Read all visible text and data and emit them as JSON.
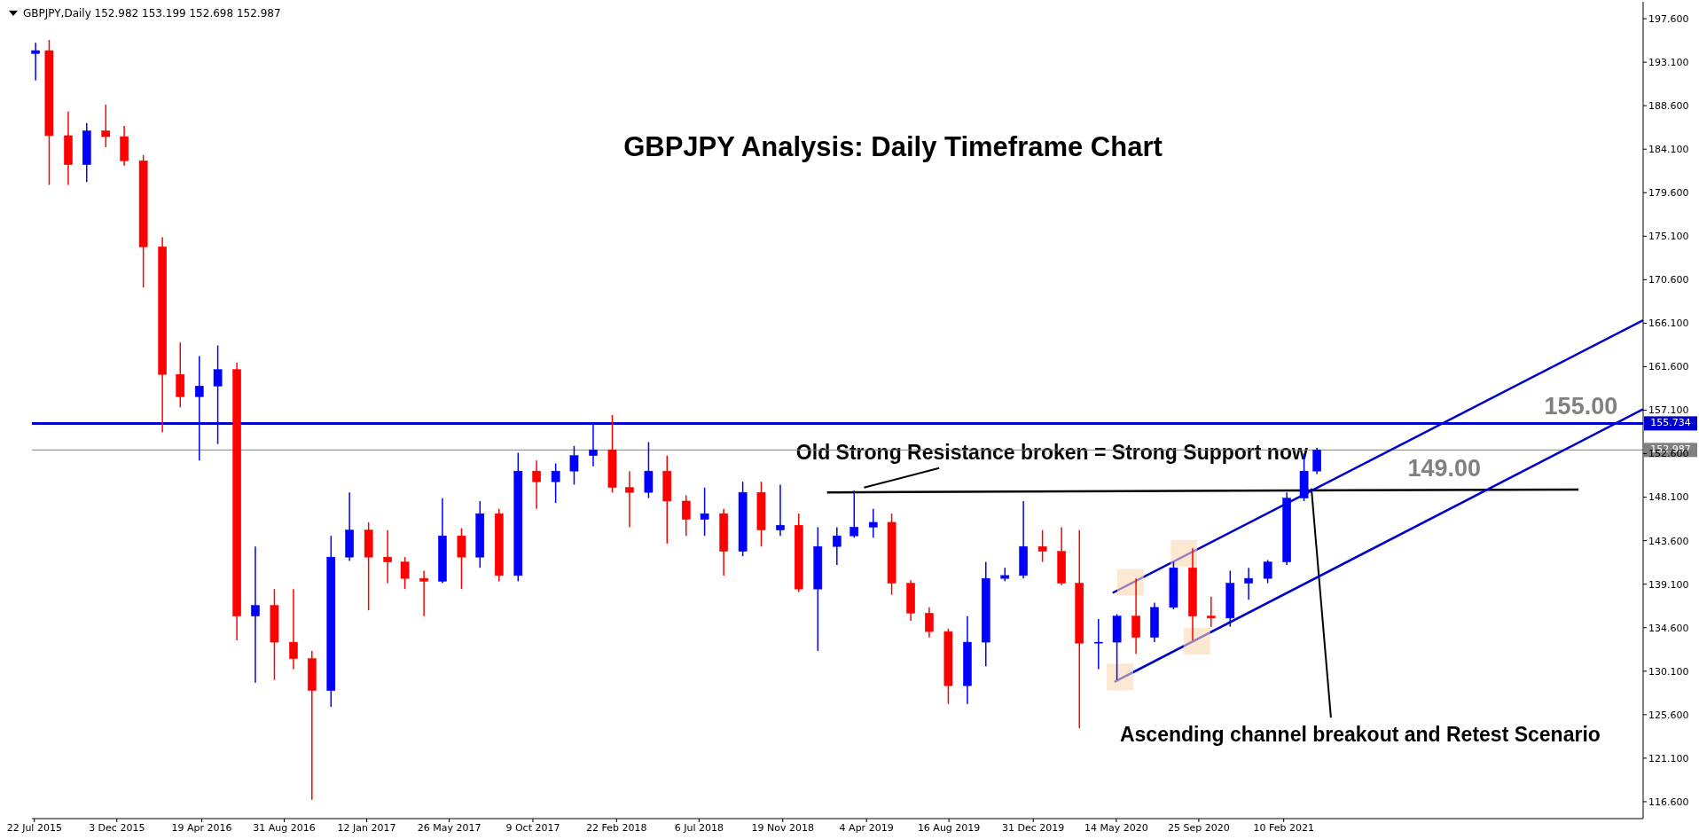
{
  "chart_data": {
    "type": "candlestick",
    "title": "GBPJPY Analysis: Daily Timeframe Chart",
    "x": [
      "2015-07-24",
      "2015-08-15",
      "2015-09-15",
      "2015-10-15",
      "2015-11-15",
      "2015-12-15",
      "2016-01-15",
      "2016-02-15",
      "2016-03-15",
      "2016-04-15",
      "2016-05-15",
      "2016-06-15",
      "2016-07-15",
      "2016-08-15",
      "2016-09-15",
      "2016-10-15",
      "2016-11-15",
      "2016-12-15",
      "2017-01-15",
      "2017-02-15",
      "2017-03-15",
      "2017-04-15",
      "2017-05-15",
      "2017-06-15",
      "2017-07-15",
      "2017-08-15",
      "2017-09-15",
      "2017-10-15",
      "2017-11-15",
      "2017-12-15",
      "2018-01-15",
      "2018-02-15",
      "2018-03-15",
      "2018-04-15",
      "2018-05-15",
      "2018-06-15",
      "2018-07-15",
      "2018-08-15",
      "2018-09-15",
      "2018-10-15",
      "2018-11-15",
      "2018-12-15",
      "2019-01-15",
      "2019-02-15",
      "2019-03-15",
      "2019-04-15",
      "2019-05-15",
      "2019-06-15",
      "2019-07-15",
      "2019-08-15",
      "2019-09-15",
      "2019-10-15",
      "2019-11-15",
      "2019-12-15",
      "2020-01-15",
      "2020-02-15",
      "2020-03-15",
      "2020-04-15",
      "2020-05-15",
      "2020-06-15",
      "2020-07-15",
      "2020-08-15",
      "2020-09-15",
      "2020-10-15",
      "2020-11-15",
      "2020-12-15",
      "2021-01-15",
      "2021-02-15",
      "2021-03-15",
      "2021-04-05"
    ],
    "ohlc": [
      [
        194.0,
        195.1,
        191.2,
        194.3
      ],
      [
        194.3,
        195.4,
        180.4,
        185.5
      ],
      [
        185.5,
        188.0,
        180.4,
        182.5
      ],
      [
        182.5,
        186.8,
        180.7,
        186.0
      ],
      [
        186.0,
        188.7,
        184.3,
        185.4
      ],
      [
        185.4,
        186.5,
        182.4,
        182.9
      ],
      [
        182.9,
        183.5,
        169.8,
        174.0
      ],
      [
        174.0,
        175.0,
        154.8,
        160.8
      ],
      [
        160.8,
        164.1,
        157.4,
        158.5
      ],
      [
        158.5,
        162.7,
        151.9,
        159.6
      ],
      [
        159.6,
        163.8,
        153.6,
        161.3
      ],
      [
        161.3,
        162.0,
        133.3,
        135.8
      ],
      [
        135.8,
        143.0,
        128.9,
        136.9
      ],
      [
        136.9,
        138.6,
        129.2,
        133.1
      ],
      [
        133.1,
        138.6,
        130.3,
        131.4
      ],
      [
        131.4,
        132.2,
        116.8,
        128.1
      ],
      [
        128.1,
        144.1,
        126.4,
        141.9
      ],
      [
        141.9,
        148.6,
        141.5,
        144.7
      ],
      [
        144.7,
        145.5,
        136.4,
        141.9
      ],
      [
        141.9,
        144.7,
        139.2,
        141.4
      ],
      [
        141.4,
        141.9,
        138.6,
        139.7
      ],
      [
        139.7,
        140.5,
        135.8,
        139.4
      ],
      [
        139.4,
        148.0,
        139.2,
        144.1
      ],
      [
        144.1,
        144.9,
        138.6,
        141.9
      ],
      [
        141.9,
        147.7,
        140.8,
        146.4
      ],
      [
        146.4,
        146.9,
        139.4,
        140.0
      ],
      [
        140.0,
        152.7,
        139.4,
        150.8
      ],
      [
        150.8,
        151.9,
        146.9,
        149.7
      ],
      [
        149.7,
        151.6,
        147.5,
        150.8
      ],
      [
        150.8,
        153.4,
        149.4,
        152.4
      ],
      [
        152.4,
        155.8,
        151.3,
        153.0
      ],
      [
        153.0,
        156.6,
        148.6,
        149.1
      ],
      [
        149.1,
        150.8,
        145.0,
        148.6
      ],
      [
        148.6,
        153.8,
        148.0,
        150.8
      ],
      [
        150.8,
        152.4,
        143.3,
        147.7
      ],
      [
        147.7,
        148.3,
        144.1,
        145.8
      ],
      [
        145.8,
        149.1,
        144.1,
        146.4
      ],
      [
        146.4,
        146.9,
        140.0,
        142.5
      ],
      [
        142.5,
        149.7,
        142.0,
        148.6
      ],
      [
        148.6,
        149.7,
        143.0,
        144.7
      ],
      [
        144.7,
        149.4,
        144.1,
        145.2
      ],
      [
        145.2,
        146.4,
        138.3,
        138.6
      ],
      [
        138.6,
        145.0,
        132.2,
        143.0
      ],
      [
        143.0,
        145.0,
        141.1,
        144.1
      ],
      [
        144.1,
        148.8,
        143.9,
        145.0
      ],
      [
        145.0,
        146.9,
        143.9,
        145.5
      ],
      [
        145.5,
        146.4,
        138.0,
        139.2
      ],
      [
        139.2,
        139.5,
        135.3,
        136.1
      ],
      [
        136.1,
        136.7,
        133.6,
        134.2
      ],
      [
        134.2,
        134.5,
        126.7,
        128.6
      ],
      [
        128.6,
        135.8,
        126.7,
        133.1
      ],
      [
        133.1,
        141.4,
        130.6,
        139.7
      ],
      [
        139.7,
        140.8,
        139.4,
        140.0
      ],
      [
        140.0,
        147.7,
        139.7,
        143.0
      ],
      [
        143.0,
        144.7,
        141.4,
        142.5
      ],
      [
        142.5,
        145.0,
        139.0,
        139.2
      ],
      [
        139.2,
        144.7,
        124.2,
        133.0
      ],
      [
        133.0,
        135.5,
        130.3,
        133.1
      ],
      [
        133.1,
        136.0,
        129.2,
        135.8
      ],
      [
        135.8,
        139.7,
        131.9,
        133.6
      ],
      [
        133.6,
        137.2,
        133.1,
        136.7
      ],
      [
        136.7,
        141.4,
        136.5,
        140.8
      ],
      [
        140.8,
        142.8,
        133.3,
        135.8
      ],
      [
        135.8,
        137.8,
        134.7,
        135.6
      ],
      [
        135.6,
        140.5,
        134.7,
        139.2
      ],
      [
        139.2,
        140.8,
        137.5,
        139.7
      ],
      [
        139.7,
        141.6,
        139.2,
        141.4
      ],
      [
        141.4,
        148.6,
        141.1,
        148.0
      ],
      [
        148.0,
        152.6,
        147.7,
        150.8
      ],
      [
        150.8,
        153.2,
        150.5,
        152.987
      ]
    ],
    "colors": [
      "#0000ff",
      "#ff0000",
      "#ff0000",
      "#0000ff",
      "#ff0000",
      "#ff0000",
      "#ff0000",
      "#ff0000",
      "#ff0000",
      "#0000ff",
      "#0000ff",
      "#ff0000",
      "#0000ff",
      "#ff0000",
      "#ff0000",
      "#ff0000",
      "#0000ff",
      "#0000ff",
      "#ff0000",
      "#ff0000",
      "#ff0000",
      "#ff0000",
      "#0000ff",
      "#ff0000",
      "#0000ff",
      "#ff0000",
      "#0000ff",
      "#ff0000",
      "#0000ff",
      "#0000ff",
      "#0000ff",
      "#ff0000",
      "#ff0000",
      "#0000ff",
      "#ff0000",
      "#ff0000",
      "#0000ff",
      "#ff0000",
      "#0000ff",
      "#ff0000",
      "#0000ff",
      "#ff0000",
      "#0000ff",
      "#0000ff",
      "#0000ff",
      "#0000ff",
      "#ff0000",
      "#ff0000",
      "#ff0000",
      "#ff0000",
      "#0000ff",
      "#0000ff",
      "#0000ff",
      "#0000ff",
      "#ff0000",
      "#ff0000",
      "#ff0000",
      "#0000ff",
      "#0000ff",
      "#ff0000",
      "#0000ff",
      "#0000ff",
      "#ff0000",
      "#ff0000",
      "#0000ff",
      "#0000ff",
      "#0000ff",
      "#0000ff",
      "#0000ff",
      "#0000ff"
    ],
    "xlim": [
      "2015-07-18",
      "2022-09-17"
    ],
    "xticks": [
      {
        "value": "2015-07-22",
        "label": "22 Jul 2015"
      },
      {
        "value": "2015-12-03",
        "label": "3 Dec 2015"
      },
      {
        "value": "2016-04-19",
        "label": "19 Apr 2016"
      },
      {
        "value": "2016-08-31",
        "label": "31 Aug 2016"
      },
      {
        "value": "2017-01-12",
        "label": "12 Jan 2017"
      },
      {
        "value": "2017-05-26",
        "label": "26 May 2017"
      },
      {
        "value": "2017-10-09",
        "label": "9 Oct 2017"
      },
      {
        "value": "2018-02-22",
        "label": "22 Feb 2018"
      },
      {
        "value": "2018-07-06",
        "label": "6 Jul 2018"
      },
      {
        "value": "2018-11-19",
        "label": "19 Nov 2018"
      },
      {
        "value": "2019-04-04",
        "label": "4 Apr 2019"
      },
      {
        "value": "2019-08-16",
        "label": "16 Aug 2019"
      },
      {
        "value": "2019-12-31",
        "label": "31 Dec 2019"
      },
      {
        "value": "2020-05-14",
        "label": "14 May 2020"
      },
      {
        "value": "2020-09-25",
        "label": "25 Sep 2020"
      },
      {
        "value": "2021-02-10",
        "label": "10 Feb 2021"
      }
    ],
    "ylim": [
      114.85,
      199.35
    ],
    "yticks": [
      {
        "value": 116.6,
        "label": "116.600"
      },
      {
        "value": 121.1,
        "label": "121.100"
      },
      {
        "value": 125.6,
        "label": "125.600"
      },
      {
        "value": 130.1,
        "label": "130.100"
      },
      {
        "value": 134.6,
        "label": "134.600"
      },
      {
        "value": 139.1,
        "label": "139.100"
      },
      {
        "value": 143.6,
        "label": "143.600"
      },
      {
        "value": 148.1,
        "label": "148.100"
      },
      {
        "value": 152.6,
        "label": "152.600"
      },
      {
        "value": 157.1,
        "label": "157.100"
      },
      {
        "value": 161.6,
        "label": "161.600"
      },
      {
        "value": 166.1,
        "label": "166.100"
      },
      {
        "value": 170.6,
        "label": "170.600"
      },
      {
        "value": 175.1,
        "label": "175.100"
      },
      {
        "value": 179.6,
        "label": "179.600"
      },
      {
        "value": 184.1,
        "label": "184.100"
      },
      {
        "value": 188.6,
        "label": "188.600"
      },
      {
        "value": 193.1,
        "label": "193.100"
      },
      {
        "value": 197.6,
        "label": "197.600"
      }
    ],
    "series": [
      {
        "type": "scatter",
        "marker": "square",
        "color": "#fad8b0",
        "x": [
          "2020-05-20",
          "2020-06-06",
          "2020-09-01",
          "2020-09-22"
        ],
        "values": [
          129.5,
          139.3,
          142.3,
          133.2
        ]
      },
      {
        "type": "line",
        "color": "#000000",
        "x": [
          "2019-01-30",
          "2022-06-04"
        ],
        "values": [
          148.6,
          148.9
        ]
      },
      {
        "type": "line",
        "color": "#0000cd",
        "x": [
          "2020-05-08",
          "2022-09-17"
        ],
        "values": [
          138.2,
          166.4
        ]
      },
      {
        "type": "line",
        "color": "#0000cd",
        "x": [
          "2020-05-11",
          "2022-09-17"
        ],
        "values": [
          129.0,
          157.2
        ]
      }
    ],
    "ref_lines": [
      {
        "axis": "y",
        "value": 155.734,
        "label": "155.734",
        "color": "#0000cd"
      },
      {
        "axis": "y",
        "value": 152.987,
        "label": "152.987",
        "color": "#808080"
      }
    ],
    "annotations": [
      "GBPJPY,Daily  152.982 153.199 152.698 152.987",
      {
        "text": "Old Strong Resistance broken = Strong Support now",
        "x": "2019-03-31",
        "y": 149.1
      },
      {
        "text": "Ascending channel breakout and Retest Scenario",
        "x": "2021-03-27",
        "y": 149.0
      },
      {
        "text": "155.00",
        "x": "2022-06-08",
        "y": 155.734
      },
      {
        "text": "149.00",
        "x": "2021-10-29",
        "y": 148.9
      }
    ]
  }
}
